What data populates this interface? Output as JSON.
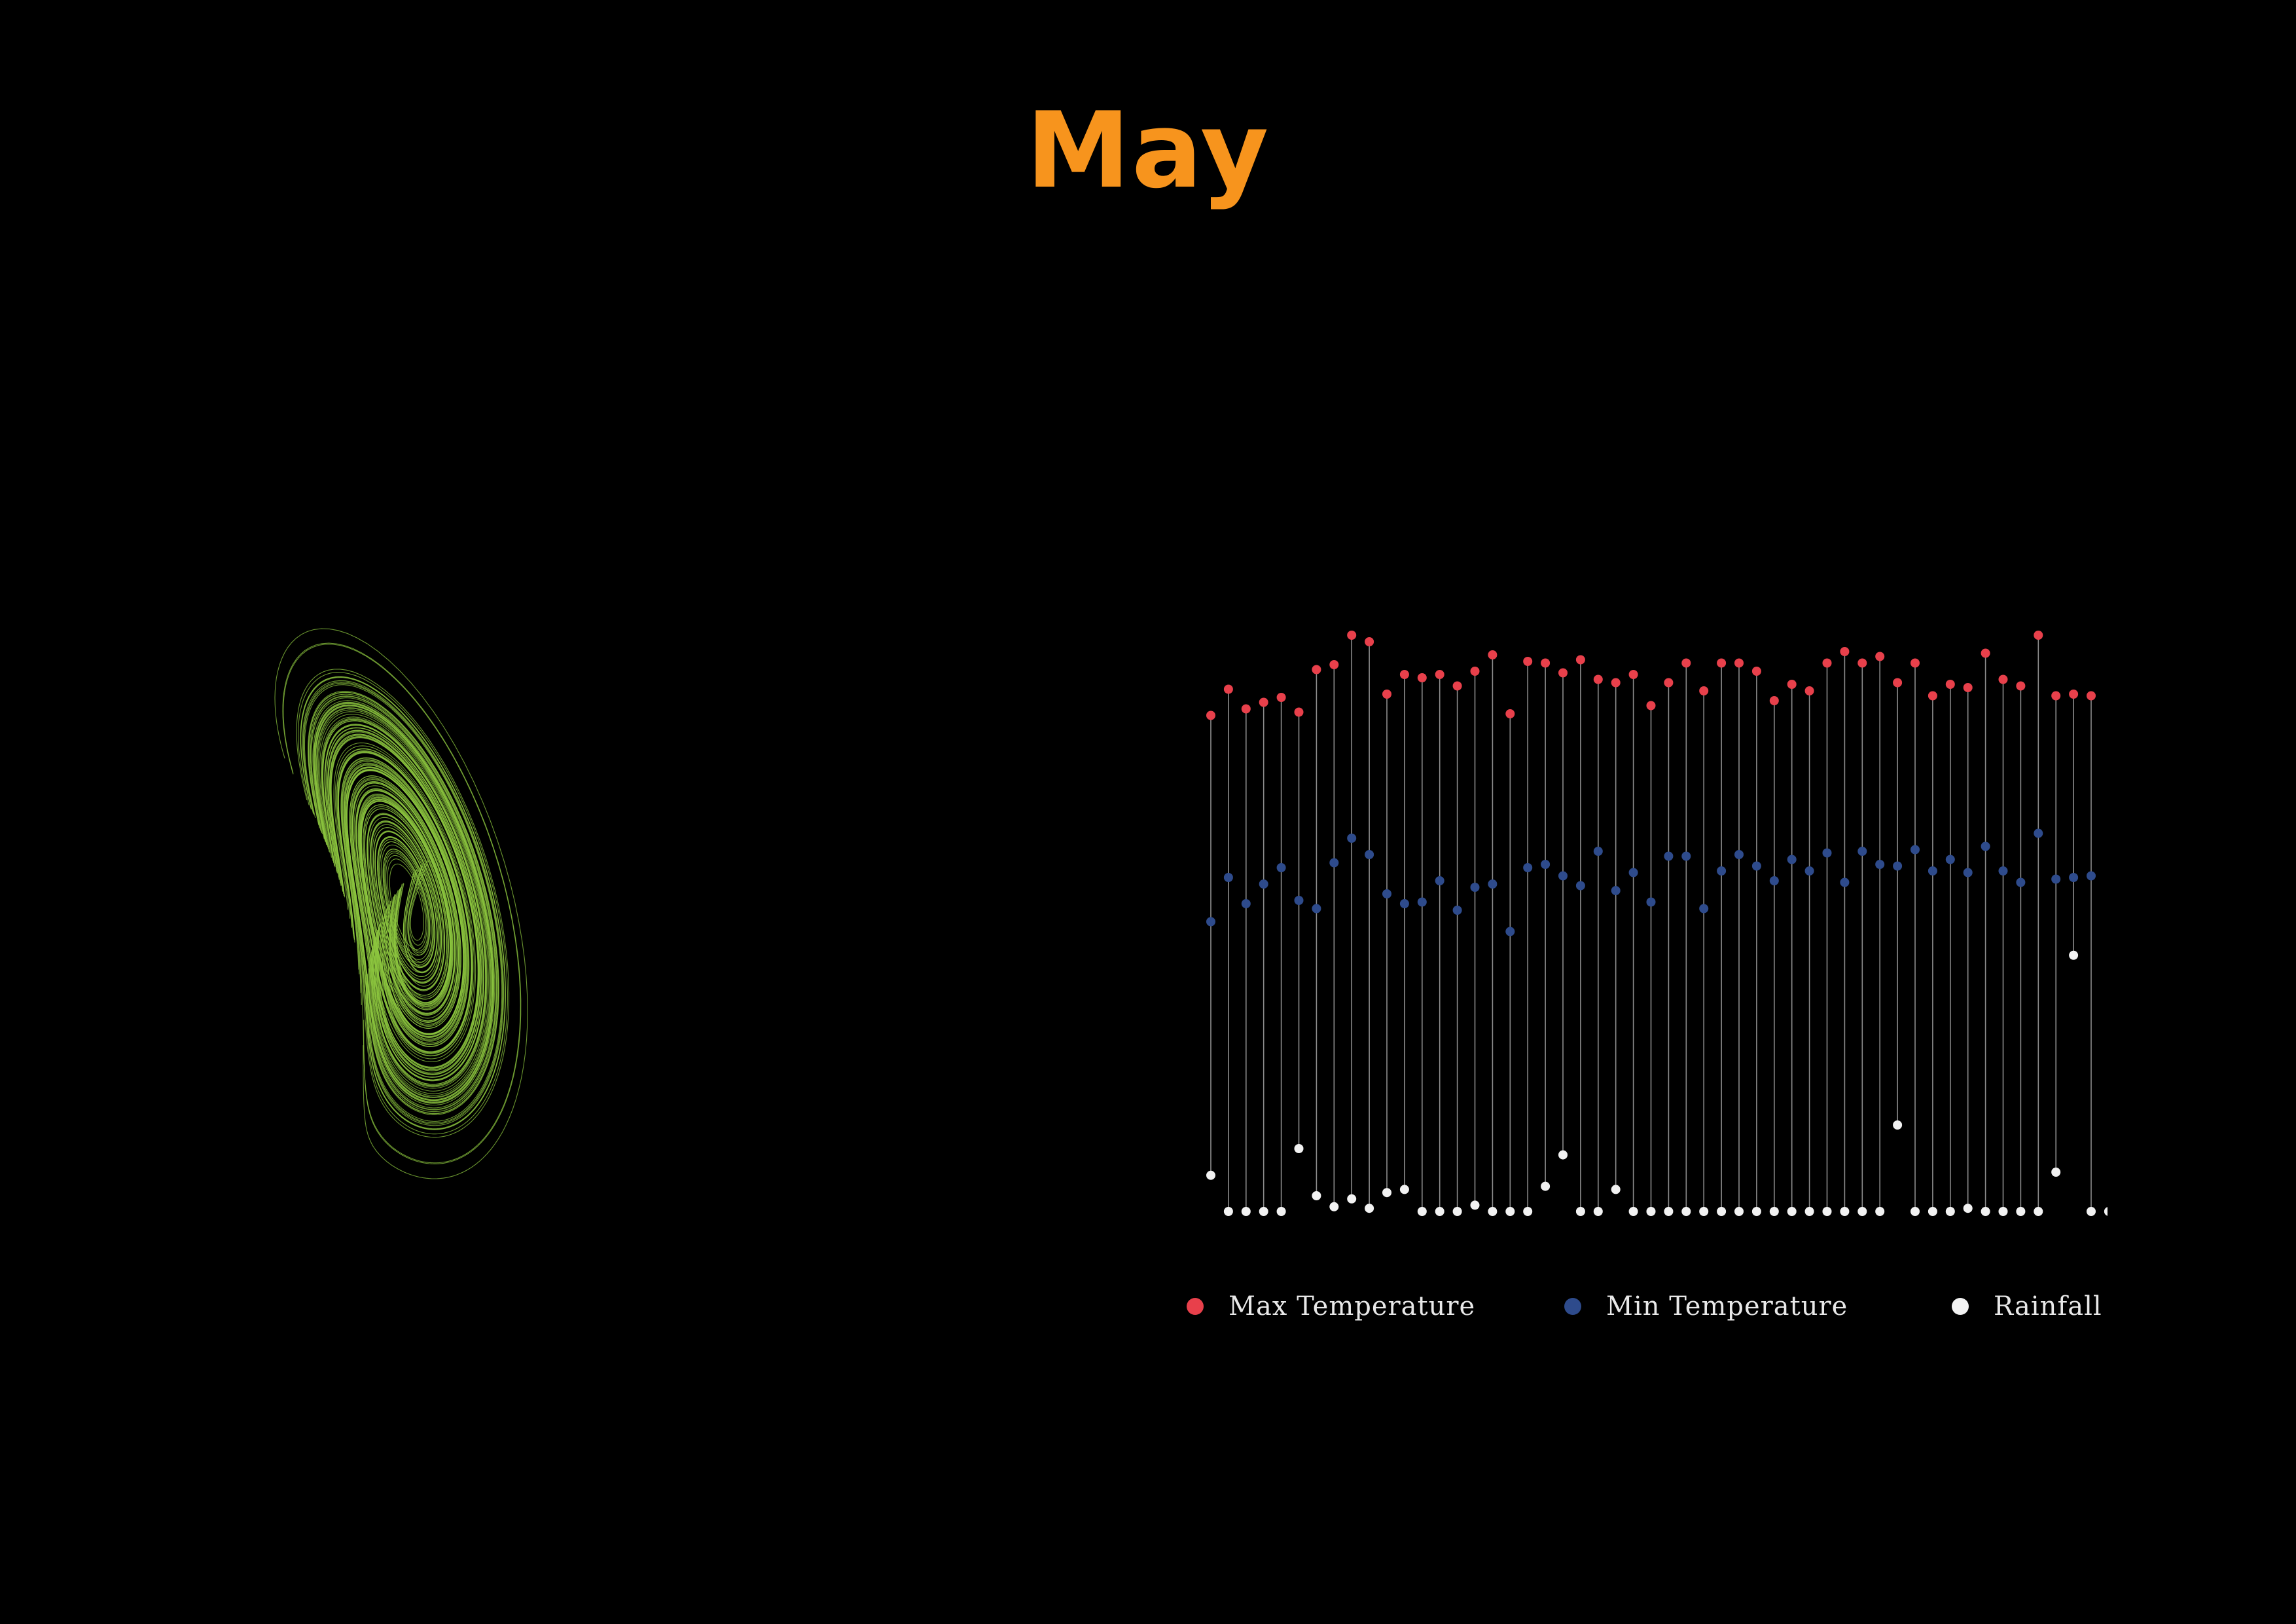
{
  "title": "May",
  "colors": {
    "title": "#f7941d",
    "background": "#000000",
    "max_temperature": "#e8404b",
    "min_temperature": "#2e4b8c",
    "rainfall": "#f2f2f2",
    "stem": "#8c8c8c",
    "attractor": "#8cc63f"
  },
  "legend": {
    "max_label": "Max Temperature",
    "min_label": "Min Temperature",
    "rain_label": "Rainfall"
  },
  "chart_data": [
    {
      "type": "line",
      "description_free": true,
      "x_range": [
        -20,
        20
      ],
      "y_range": [
        -25,
        25
      ],
      "series": []
    },
    {
      "type": "scatter",
      "title": "",
      "xlabel": "",
      "ylabel": "",
      "grid": false,
      "legend_position": "bottom",
      "days": 51,
      "ylim": [
        0,
        40
      ],
      "series": [
        {
          "name": "Max Temperature",
          "values": [
            30.3,
            31.9,
            30.7,
            31.1,
            31.4,
            30.5,
            33.1,
            33.4,
            35.2,
            34.8,
            31.6,
            32.8,
            32.6,
            32.8,
            32.1,
            33.0,
            34.0,
            30.4,
            33.6,
            33.5,
            32.9,
            33.7,
            32.5,
            32.3,
            32.8,
            30.9,
            32.3,
            33.5,
            31.8,
            33.5,
            33.5,
            33.0,
            31.2,
            32.2,
            31.8,
            33.5,
            34.2,
            33.5,
            33.9,
            32.3,
            33.5,
            31.5,
            32.2,
            32.0,
            34.1,
            32.5,
            32.1,
            35.2,
            31.5,
            31.6,
            31.5
          ]
        },
        {
          "name": "Min Temperature",
          "values": [
            17.7,
            20.4,
            18.8,
            20.0,
            21.0,
            19.0,
            18.5,
            21.3,
            22.8,
            21.8,
            19.4,
            18.8,
            18.9,
            20.2,
            18.4,
            19.8,
            20.0,
            17.1,
            21.0,
            21.2,
            20.5,
            19.9,
            22.0,
            19.6,
            20.7,
            18.9,
            21.7,
            21.7,
            18.5,
            20.8,
            21.8,
            21.1,
            20.2,
            21.5,
            20.8,
            21.9,
            20.1,
            22.0,
            21.2,
            21.1,
            22.1,
            20.8,
            21.5,
            20.7,
            22.3,
            20.8,
            20.1,
            23.1,
            20.3,
            20.4,
            20.5
          ]
        },
        {
          "name": "Rainfall",
          "values": [
            2.3,
            0.0,
            0.0,
            0.0,
            0.0,
            4.0,
            1.0,
            0.3,
            0.8,
            0.2,
            1.2,
            1.4,
            0.0,
            0.0,
            0.0,
            0.4,
            0.0,
            0.0,
            0.0,
            1.6,
            3.6,
            0.0,
            0.0,
            1.4,
            0.0,
            0.0,
            0.0,
            0.0,
            0.0,
            0.0,
            0.0,
            0.0,
            0.0,
            0.0,
            0.0,
            0.0,
            0.0,
            0.0,
            0.0,
            5.5,
            0.0,
            0.0,
            0.0,
            0.2,
            0.0,
            0.0,
            0.0,
            0.0,
            2.5,
            16.3,
            0.0
          ]
        }
      ]
    }
  ]
}
